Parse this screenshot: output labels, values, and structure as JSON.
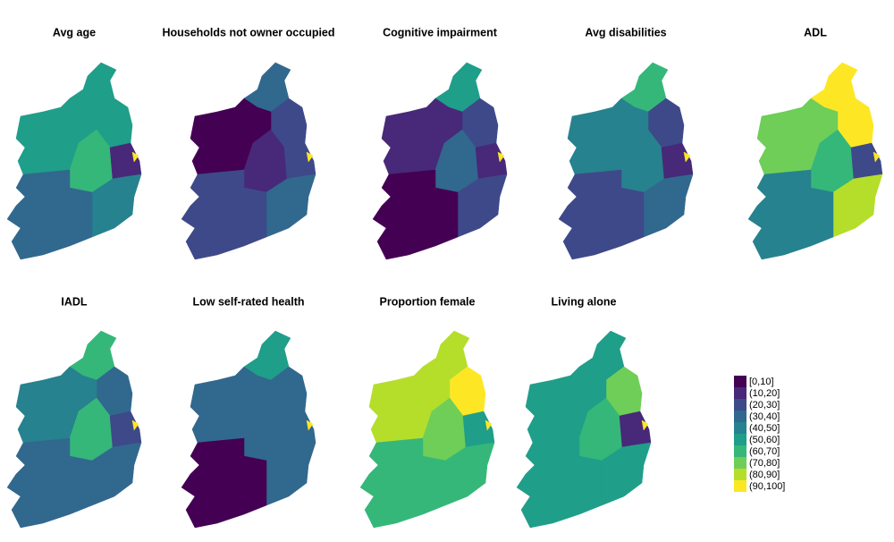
{
  "maps": [
    {
      "title": "Avg age",
      "regions": [
        5,
        5,
        5,
        6,
        1,
        4,
        3,
        9
      ]
    },
    {
      "title": "Households not owner occupied",
      "regions": [
        3,
        2,
        0,
        1,
        2,
        3,
        2,
        9
      ]
    },
    {
      "title": "Cognitive impairment",
      "regions": [
        5,
        2,
        1,
        3,
        1,
        2,
        0,
        9
      ]
    },
    {
      "title": "Avg disabilities",
      "regions": [
        6,
        2,
        4,
        4,
        1,
        3,
        2,
        9
      ]
    },
    {
      "title": "ADL",
      "regions": [
        9,
        9,
        7,
        6,
        2,
        8,
        4,
        9
      ]
    },
    {
      "title": "IADL",
      "regions": [
        6,
        3,
        4,
        6,
        2,
        3,
        3,
        9
      ]
    },
    {
      "title": "Low self-rated health",
      "regions": [
        5,
        3,
        3,
        3,
        3,
        3,
        0,
        9
      ]
    },
    {
      "title": "Proportion female",
      "regions": [
        8,
        9,
        8,
        7,
        5,
        6,
        6,
        9
      ]
    },
    {
      "title": "Living alone",
      "regions": [
        5,
        7,
        5,
        6,
        1,
        5,
        5,
        9
      ]
    }
  ],
  "legend": {
    "labels": [
      "[0,10]",
      "(10,20]",
      "(20,30]",
      "(30,40]",
      "(40,50]",
      "(50,60]",
      "(60,70]",
      "(70,80]",
      "(80,90]",
      "(90,100]"
    ],
    "colors": [
      "#440154",
      "#482878",
      "#3e4989",
      "#31688e",
      "#26828e",
      "#1f9e89",
      "#35b779",
      "#6ece58",
      "#b5de2b",
      "#fde725"
    ]
  }
}
